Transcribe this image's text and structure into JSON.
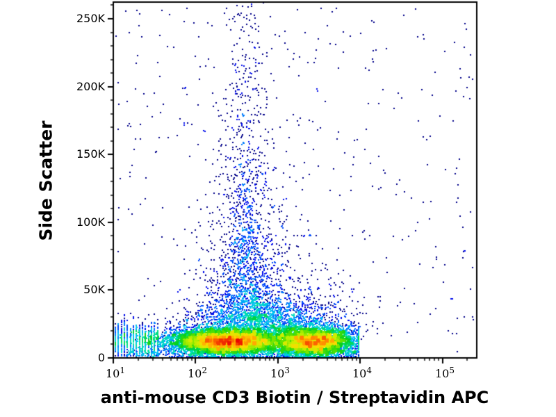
{
  "figure": {
    "background_color": "#ffffff",
    "frame_color": "#000000",
    "text_color": "#000000"
  },
  "chart_data": {
    "type": "scatter",
    "subtype": "flow-cytometry-pseudocolor-density",
    "title": "",
    "xlabel": "anti-mouse CD3 Biotin / Streptavidin APC",
    "ylabel": "Side Scatter",
    "x_scale": "log10",
    "x_domain_log10": [
      1.0,
      5.415
    ],
    "y_domain": [
      0,
      262295
    ],
    "grid": "off",
    "legend": "none",
    "x_major_ticks": [
      {
        "base": "10",
        "exponent": "1",
        "value": 10
      },
      {
        "base": "10",
        "exponent": "2",
        "value": 100
      },
      {
        "base": "10",
        "exponent": "3",
        "value": 1000
      },
      {
        "base": "10",
        "exponent": "4",
        "value": 10000
      },
      {
        "base": "10",
        "exponent": "5",
        "value": 100000
      }
    ],
    "x_minor_ticks": "2-9 per decade (log spaced)",
    "y_major_ticks": [
      {
        "value": 0,
        "label": "0"
      },
      {
        "value": 50000,
        "label": "50K"
      },
      {
        "value": 100000,
        "label": "100K"
      },
      {
        "value": 150000,
        "label": "150K"
      },
      {
        "value": 200000,
        "label": "200K"
      },
      {
        "value": 250000,
        "label": "250K"
      }
    ],
    "y_minor_step": 10000,
    "density_colormap_stops": [
      [
        0.0,
        "#000088"
      ],
      [
        0.15,
        "#0000e8"
      ],
      [
        0.3,
        "#0060ff"
      ],
      [
        0.42,
        "#00c0f8"
      ],
      [
        0.52,
        "#00e0b0"
      ],
      [
        0.62,
        "#00d020"
      ],
      [
        0.72,
        "#58e000"
      ],
      [
        0.8,
        "#c8f000"
      ],
      [
        0.87,
        "#ffd800"
      ],
      [
        0.93,
        "#ff7800"
      ],
      [
        1.0,
        "#e80000"
      ]
    ],
    "render_seed": 20240613,
    "populations": [
      {
        "name": "debris-axis-pileup",
        "count": 350,
        "x": {
          "dist": "const",
          "value": 1.0
        },
        "y": {
          "dist": "normal",
          "mean": 11500,
          "sd": 4200,
          "min": 1500,
          "max": 30000
        }
      },
      {
        "name": "low-signal-stripes",
        "count": 900,
        "x": {
          "dist": "uniform",
          "min": 1.0,
          "max": 1.55,
          "quant": 0.0366
        },
        "y": {
          "dist": "normal",
          "mean": 13000,
          "sd": 6500,
          "min": 1500,
          "max": 33000
        }
      },
      {
        "name": "main-population-left-lobe",
        "count": 8000,
        "x": {
          "dist": "normal",
          "mean": 2.38,
          "sd": 0.36
        },
        "y": {
          "dist": "normal",
          "mean": 12000,
          "sd": 4800,
          "min": 900,
          "max": 45000
        }
      },
      {
        "name": "main-population-right-lobe",
        "count": 5200,
        "x": {
          "dist": "normal",
          "mean": 3.45,
          "sd": 0.24,
          "max": 3.98
        },
        "y": {
          "dist": "normal",
          "mean": 12000,
          "sd": 5200,
          "min": 900,
          "max": 45000
        }
      },
      {
        "name": "band-upper-halo",
        "count": 1800,
        "x": {
          "dist": "normal",
          "mean": 2.8,
          "sd": 0.45
        },
        "y": {
          "dist": "normal",
          "mean": 24000,
          "sd": 9000,
          "min": 6000,
          "max": 62000
        }
      },
      {
        "name": "sub-band-scatter",
        "count": 400,
        "x": {
          "dist": "uniform",
          "min": 1.15,
          "max": 3.95
        },
        "y": {
          "dist": "uniform",
          "min": 800,
          "max": 5500
        }
      },
      {
        "name": "plume-wide-cone",
        "count": 1300,
        "x": {
          "dist": "normal",
          "mean": 2.62,
          "sd": 0.28
        },
        "y": {
          "dist": "exp",
          "offset": 28000,
          "scale": 42000,
          "max": 262295
        }
      },
      {
        "name": "plume-narrow-column",
        "count": 650,
        "x": {
          "dist": "normal",
          "mean": 2.62,
          "sd": 0.11
        },
        "y": {
          "dist": "exp",
          "offset": 40000,
          "scale": 95000,
          "max": 262295
        }
      },
      {
        "name": "top-edge-pinned",
        "count": 40,
        "x": {
          "dist": "normal",
          "mean": 2.62,
          "sd": 0.22
        },
        "y": {
          "dist": "const",
          "value": 262295
        }
      },
      {
        "name": "right-band-halo",
        "count": 350,
        "x": {
          "dist": "normal",
          "mean": 3.4,
          "sd": 0.35
        },
        "y": {
          "dist": "exp",
          "offset": 20000,
          "scale": 18000,
          "max": 90000
        }
      },
      {
        "name": "sparse-background",
        "count": 420,
        "x": {
          "dist": "uniform",
          "min": 1.02,
          "max": 5.38
        },
        "y": {
          "dist": "uniform",
          "min": 1000,
          "max": 258000
        }
      },
      {
        "name": "right-edge-pinned",
        "count": 10,
        "x": {
          "dist": "const",
          "value": 5.415
        },
        "y": {
          "dist": "uniform",
          "min": 8000,
          "max": 60000
        }
      }
    ]
  }
}
